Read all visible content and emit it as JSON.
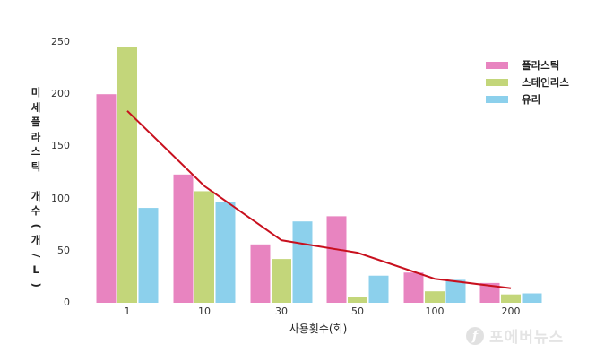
{
  "chart_data": {
    "type": "bar",
    "title": "",
    "xlabel": "사용횟수(회)",
    "ylabel": "미세플라스틱 개수 (개/L)",
    "ylim": [
      0,
      250
    ],
    "yticks": [
      0,
      50,
      100,
      150,
      200,
      250
    ],
    "grid": false,
    "legend_position": "upper right",
    "categories": [
      "1",
      "10",
      "30",
      "50",
      "100",
      "200"
    ],
    "series": [
      {
        "name": "플라스틱",
        "color": "#e884c0",
        "values": [
          200,
          123,
          56,
          83,
          29,
          19
        ]
      },
      {
        "name": "스테인리스",
        "color": "#c3d67a",
        "values": [
          245,
          107,
          42,
          6,
          11,
          8
        ]
      },
      {
        "name": "유리",
        "color": "#8cd0ec",
        "values": [
          91,
          97,
          78,
          26,
          22,
          9
        ]
      }
    ],
    "trend_line": {
      "type": "line",
      "color": "#c8101e",
      "values": [
        184,
        112,
        60,
        48,
        23,
        14
      ]
    }
  },
  "axis": {
    "xlabel": "사용횟수(회)",
    "ylabel_chars": [
      "미",
      "세",
      "플",
      "라",
      "스",
      "틱",
      " ",
      "개",
      "수",
      "(",
      "개",
      "/",
      "L",
      ")"
    ]
  },
  "legend": [
    {
      "label": "플라스틱",
      "color": "#e884c0"
    },
    {
      "label": "스테인리스",
      "color": "#c3d67a"
    },
    {
      "label": "유리",
      "color": "#8cd0ec"
    }
  ],
  "watermark": {
    "logo": "f",
    "text": "포에버뉴스"
  }
}
